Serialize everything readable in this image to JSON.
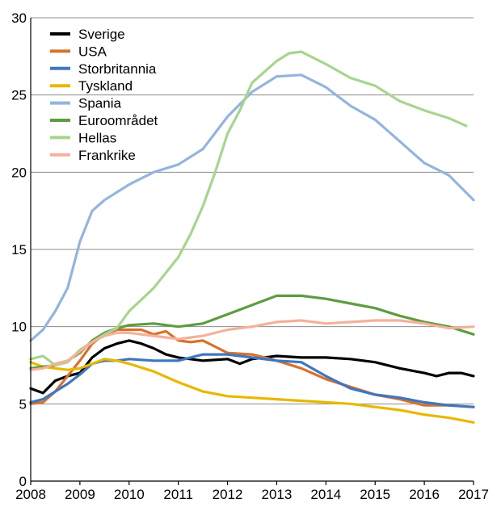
{
  "chart_data": {
    "type": "line",
    "title": "",
    "xlabel": "",
    "ylabel": "",
    "xlim": [
      2008,
      2017
    ],
    "ylim": [
      0,
      30
    ],
    "grid": true,
    "legend_position": "top-left",
    "x_ticks": [
      "2008",
      "2009",
      "2010",
      "2011",
      "2012",
      "2013",
      "2014",
      "2015",
      "2016",
      "2017"
    ],
    "y_ticks": [
      "0",
      "5",
      "10",
      "15",
      "20",
      "25",
      "30"
    ],
    "series": [
      {
        "name": "Sverige",
        "color": "#000000",
        "x": [
          2008.0,
          2008.25,
          2008.5,
          2008.75,
          2009.0,
          2009.25,
          2009.5,
          2009.75,
          2010.0,
          2010.25,
          2010.5,
          2010.75,
          2011.0,
          2011.5,
          2012.0,
          2012.25,
          2012.5,
          2013.0,
          2013.5,
          2014.0,
          2014.5,
          2015.0,
          2015.5,
          2016.0,
          2016.25,
          2016.5,
          2016.75,
          2017.0
        ],
        "y": [
          6.0,
          5.7,
          6.5,
          6.8,
          7.0,
          8.0,
          8.6,
          8.9,
          9.1,
          8.9,
          8.6,
          8.2,
          8.0,
          7.8,
          7.9,
          7.6,
          7.9,
          8.1,
          8.0,
          8.0,
          7.9,
          7.7,
          7.3,
          7.0,
          6.8,
          7.0,
          7.0,
          6.8
        ]
      },
      {
        "name": "USA",
        "color": "#D7722D",
        "x": [
          2008.0,
          2008.25,
          2008.5,
          2008.75,
          2009.0,
          2009.25,
          2009.5,
          2009.75,
          2010.0,
          2010.25,
          2010.5,
          2010.75,
          2011.0,
          2011.25,
          2011.5,
          2011.75,
          2012.0,
          2012.5,
          2013.0,
          2013.5,
          2014.0,
          2014.5,
          2015.0,
          2015.5,
          2016.0,
          2016.5,
          2017.0
        ],
        "y": [
          5.0,
          5.1,
          5.8,
          6.8,
          7.8,
          8.9,
          9.5,
          9.8,
          9.8,
          9.8,
          9.5,
          9.7,
          9.1,
          9.0,
          9.1,
          8.7,
          8.3,
          8.2,
          7.8,
          7.3,
          6.6,
          6.1,
          5.6,
          5.3,
          4.9,
          4.9,
          4.8
        ]
      },
      {
        "name": "Storbritannia",
        "color": "#3F76BF",
        "x": [
          2008.0,
          2008.25,
          2008.5,
          2008.75,
          2009.0,
          2009.25,
          2009.5,
          2009.75,
          2010.0,
          2010.5,
          2011.0,
          2011.5,
          2012.0,
          2012.5,
          2013.0,
          2013.5,
          2014.0,
          2014.5,
          2015.0,
          2015.5,
          2016.0,
          2016.5,
          2017.0
        ],
        "y": [
          5.1,
          5.3,
          5.8,
          6.3,
          6.9,
          7.6,
          7.8,
          7.8,
          7.9,
          7.8,
          7.8,
          8.2,
          8.2,
          8.0,
          7.8,
          7.7,
          6.8,
          6.0,
          5.6,
          5.4,
          5.1,
          4.9,
          4.8
        ]
      },
      {
        "name": "Tyskland",
        "color": "#E8B800",
        "x": [
          2008.0,
          2008.25,
          2008.5,
          2008.75,
          2009.0,
          2009.25,
          2009.5,
          2009.75,
          2010.0,
          2010.5,
          2011.0,
          2011.5,
          2012.0,
          2012.5,
          2013.0,
          2013.5,
          2014.0,
          2014.5,
          2015.0,
          2015.5,
          2016.0,
          2016.5,
          2017.0
        ],
        "y": [
          7.7,
          7.4,
          7.3,
          7.2,
          7.3,
          7.6,
          7.9,
          7.8,
          7.6,
          7.1,
          6.4,
          5.8,
          5.5,
          5.4,
          5.3,
          5.2,
          5.1,
          5.0,
          4.8,
          4.6,
          4.3,
          4.1,
          3.8
        ]
      },
      {
        "name": "Spania",
        "color": "#94B4DF",
        "x": [
          2008.0,
          2008.25,
          2008.5,
          2008.75,
          2009.0,
          2009.25,
          2009.5,
          2009.75,
          2010.0,
          2010.5,
          2011.0,
          2011.5,
          2012.0,
          2012.5,
          2013.0,
          2013.5,
          2014.0,
          2014.5,
          2015.0,
          2015.5,
          2016.0,
          2016.5,
          2017.0
        ],
        "y": [
          9.1,
          9.8,
          11.0,
          12.5,
          15.5,
          17.5,
          18.2,
          18.7,
          19.2,
          20.0,
          20.5,
          21.5,
          23.6,
          25.2,
          26.2,
          26.3,
          25.5,
          24.3,
          23.4,
          22.0,
          20.6,
          19.8,
          18.2
        ]
      },
      {
        "name": "Euroområdet",
        "color": "#5E9C3F",
        "x": [
          2008.0,
          2008.25,
          2008.5,
          2008.75,
          2009.0,
          2009.25,
          2009.5,
          2009.75,
          2010.0,
          2010.5,
          2011.0,
          2011.5,
          2012.0,
          2012.5,
          2013.0,
          2013.5,
          2014.0,
          2014.5,
          2015.0,
          2015.5,
          2016.0,
          2016.5,
          2017.0
        ],
        "y": [
          7.3,
          7.4,
          7.5,
          7.8,
          8.3,
          9.1,
          9.6,
          9.9,
          10.1,
          10.2,
          10.0,
          10.2,
          10.8,
          11.4,
          12.0,
          12.0,
          11.8,
          11.5,
          11.2,
          10.7,
          10.3,
          10.0,
          9.5
        ]
      },
      {
        "name": "Hellas",
        "color": "#A7D58E",
        "x": [
          2008.0,
          2008.25,
          2008.5,
          2008.75,
          2009.0,
          2009.25,
          2009.5,
          2009.75,
          2010.0,
          2010.5,
          2011.0,
          2011.25,
          2011.5,
          2011.75,
          2012.0,
          2012.25,
          2012.5,
          2013.0,
          2013.25,
          2013.5,
          2014.0,
          2014.5,
          2015.0,
          2015.5,
          2016.0,
          2016.5,
          2016.85
        ],
        "y": [
          7.9,
          8.1,
          7.5,
          7.7,
          8.5,
          9.0,
          9.5,
          9.9,
          11.0,
          12.5,
          14.5,
          16.0,
          17.8,
          20.0,
          22.5,
          24.0,
          25.8,
          27.2,
          27.7,
          27.8,
          27.0,
          26.1,
          25.6,
          24.6,
          24.0,
          23.5,
          23.0
        ]
      },
      {
        "name": "Frankrike",
        "color": "#F4B19B",
        "x": [
          2008.0,
          2008.25,
          2008.5,
          2008.75,
          2009.0,
          2009.25,
          2009.5,
          2009.75,
          2010.0,
          2010.5,
          2011.0,
          2011.5,
          2012.0,
          2012.5,
          2013.0,
          2013.5,
          2014.0,
          2014.5,
          2015.0,
          2015.5,
          2016.0,
          2016.5,
          2017.0
        ],
        "y": [
          7.2,
          7.3,
          7.6,
          7.8,
          8.4,
          9.0,
          9.4,
          9.6,
          9.6,
          9.4,
          9.2,
          9.4,
          9.8,
          10.0,
          10.3,
          10.4,
          10.2,
          10.3,
          10.4,
          10.4,
          10.2,
          9.9,
          10.0
        ]
      }
    ]
  }
}
